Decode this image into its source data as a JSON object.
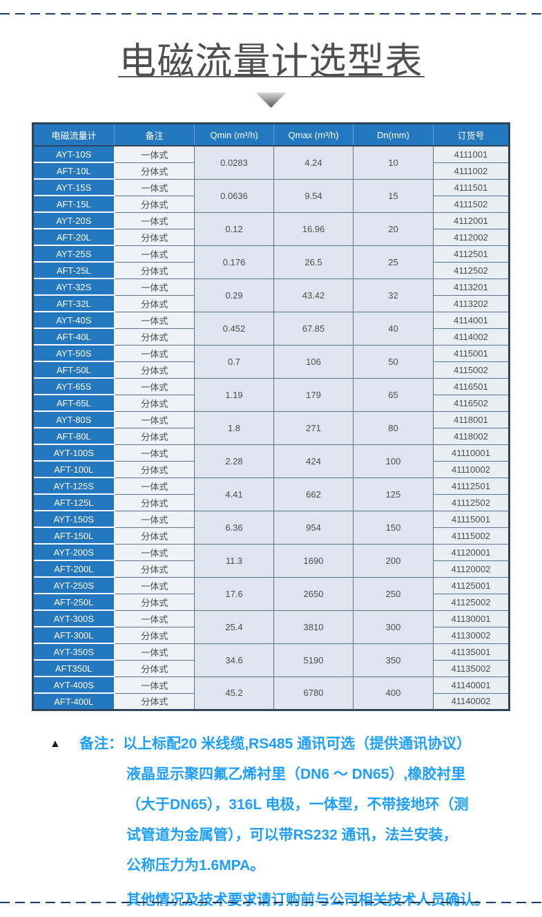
{
  "title": "电磁流量计选型表",
  "table": {
    "headers": [
      "电磁流量计",
      "备注",
      "Qmin (m³/h)",
      "Qmax (m³/h)",
      "Dn(mm)",
      "订货号"
    ],
    "groups": [
      {
        "model_s": "AYT-10S",
        "note_s": "一体式",
        "model_l": "AFT-10L",
        "note_l": "分体式",
        "qmin": "0.0283",
        "qmax": "4.24",
        "dn": "10",
        "order_s": "4111001",
        "order_l": "4111002"
      },
      {
        "model_s": "AYT-15S",
        "note_s": "一体式",
        "model_l": "AFT-15L",
        "note_l": "分体式",
        "qmin": "0.0636",
        "qmax": "9.54",
        "dn": "15",
        "order_s": "4111501",
        "order_l": "4111502"
      },
      {
        "model_s": "AYT-20S",
        "note_s": "一体式",
        "model_l": "AFT-20L",
        "note_l": "分体式",
        "qmin": "0.12",
        "qmax": "16.96",
        "dn": "20",
        "order_s": "4112001",
        "order_l": "4112002"
      },
      {
        "model_s": "AYT-25S",
        "note_s": "一体式",
        "model_l": "AFT-25L",
        "note_l": "分体式",
        "qmin": "0.176",
        "qmax": "26.5",
        "dn": "25",
        "order_s": "4112501",
        "order_l": "4112502"
      },
      {
        "model_s": "AYT-32S",
        "note_s": "一体式",
        "model_l": "AFT-32L",
        "note_l": "分体式",
        "qmin": "0.29",
        "qmax": "43.42",
        "dn": "32",
        "order_s": "4113201",
        "order_l": "4113202"
      },
      {
        "model_s": "AYT-40S",
        "note_s": "一体式",
        "model_l": "AFT-40L",
        "note_l": "分体式",
        "qmin": "0.452",
        "qmax": "67.85",
        "dn": "40",
        "order_s": "4114001",
        "order_l": "4114002"
      },
      {
        "model_s": "AYT-50S",
        "note_s": "一体式",
        "model_l": "AFT-50L",
        "note_l": "分体式",
        "qmin": "0.7",
        "qmax": "106",
        "dn": "50",
        "order_s": "4115001",
        "order_l": "4115002"
      },
      {
        "model_s": "AYT-65S",
        "note_s": "一体式",
        "model_l": "AFT-65L",
        "note_l": "分体式",
        "qmin": "1.19",
        "qmax": "179",
        "dn": "65",
        "order_s": "4116501",
        "order_l": "4116502"
      },
      {
        "model_s": "AYT-80S",
        "note_s": "一体式",
        "model_l": "AFT-80L",
        "note_l": "分体式",
        "qmin": "1.8",
        "qmax": "271",
        "dn": "80",
        "order_s": "4118001",
        "order_l": "4118002"
      },
      {
        "model_s": "AYT-100S",
        "note_s": "一体式",
        "model_l": "AFT-100L",
        "note_l": "分体式",
        "qmin": "2.28",
        "qmax": "424",
        "dn": "100",
        "order_s": "41110001",
        "order_l": "41110002"
      },
      {
        "model_s": "AYT-125S",
        "note_s": "一体式",
        "model_l": "AFT-125L",
        "note_l": "分体式",
        "qmin": "4.41",
        "qmax": "662",
        "dn": "125",
        "order_s": "41112501",
        "order_l": "41112502"
      },
      {
        "model_s": "AYT-150S",
        "note_s": "一体式",
        "model_l": "AFT-150L",
        "note_l": "分体式",
        "qmin": "6.36",
        "qmax": "954",
        "dn": "150",
        "order_s": "41115001",
        "order_l": "41115002"
      },
      {
        "model_s": "AYT-200S",
        "note_s": "一体式",
        "model_l": "AFT-200L",
        "note_l": "分体式",
        "qmin": "11.3",
        "qmax": "1690",
        "dn": "200",
        "order_s": "41120001",
        "order_l": "41120002"
      },
      {
        "model_s": "AYT-250S",
        "note_s": "一体式",
        "model_l": "AFT-250L",
        "note_l": "分体式",
        "qmin": "17.6",
        "qmax": "2650",
        "dn": "250",
        "order_s": "41125001",
        "order_l": "41125002"
      },
      {
        "model_s": "AYT-300S",
        "note_s": "一体式",
        "model_l": "AFT-300L",
        "note_l": "分体式",
        "qmin": "25.4",
        "qmax": "3810",
        "dn": "300",
        "order_s": "41130001",
        "order_l": "41130002"
      },
      {
        "model_s": "AYT-350S",
        "note_s": "一体式",
        "model_l": "AFT350L",
        "note_l": "分体式",
        "qmin": "34.6",
        "qmax": "5190",
        "dn": "350",
        "order_s": "41135001",
        "order_l": "41135002"
      },
      {
        "model_s": "AYT-400S",
        "note_s": "一体式",
        "model_l": "AFT-400L",
        "note_l": "分体式",
        "qmin": "45.2",
        "qmax": "6780",
        "dn": "400",
        "order_s": "41140001",
        "order_l": "41140002"
      }
    ]
  },
  "notes": {
    "marker": "▲",
    "label": "备注：",
    "line1": "以上标配20 米线缆,RS485 通讯可选（提供通讯协议）",
    "cont": [
      "液晶显示聚四氟乙烯衬里（DN6 ～ DN65）,橡胶衬里",
      "（大于DN65），316L 电极，一体型，不带接地环（测",
      "试管道为金属管），可以带RS232 通讯，法兰安装，",
      "公称压力为1.6MPA。"
    ],
    "footer": "其他情况及技术要求请订购前与公司相关技术人员确认。"
  },
  "colors": {
    "header_blue": "#2478c0",
    "note_blue": "#1e9fff",
    "dash_navy": "#1c3a66",
    "title_gray": "#4f4f4f"
  }
}
